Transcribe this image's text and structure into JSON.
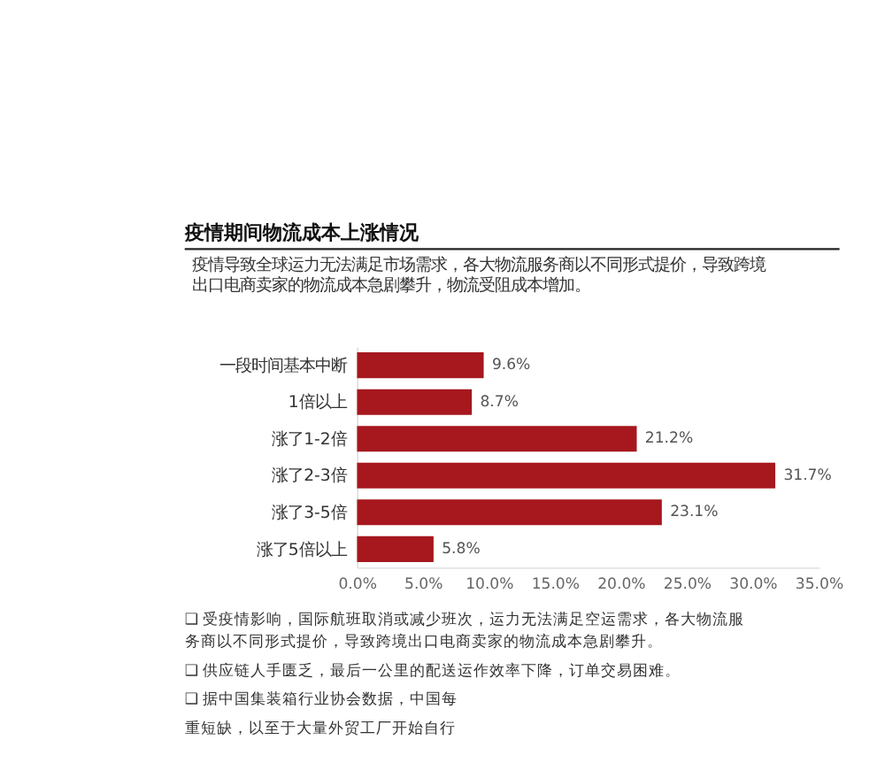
{
  "chart_data": {
    "type": "bar",
    "orientation": "horizontal",
    "title": "疫情期间物流成本上涨情况",
    "subtitle": "疫情导致全球运力无法满足市场需求，各大物流服务商以不同形式提价，导致跨境出口电商卖家的物流成本急剧攀升，物流受阻成本增加。",
    "categories": [
      "一段时间基本中断",
      "1倍以上",
      "涨了1-2倍",
      "涨了2-3倍",
      "涨了3-5倍",
      "涨了5倍以上"
    ],
    "values": [
      9.6,
      8.7,
      21.2,
      31.7,
      23.1,
      5.8
    ],
    "value_labels": [
      "9.6%",
      "8.7%",
      "21.2%",
      "31.7%",
      "23.1%",
      "5.8%"
    ],
    "color": "#a6171e",
    "xlim": [
      0,
      35
    ],
    "xticks": [
      {
        "value": 0,
        "label": "0.0%"
      },
      {
        "value": 5,
        "label": "5.0%"
      },
      {
        "value": 10,
        "label": "10.0%"
      },
      {
        "value": 15,
        "label": "15.0%"
      },
      {
        "value": 20,
        "label": "20.0%"
      },
      {
        "value": 25,
        "label": "25.0%"
      },
      {
        "value": 30,
        "label": "30.0%"
      },
      {
        "value": 35,
        "label": "35.0%"
      }
    ],
    "grid": false,
    "annotations": [
      "❑ 受疫情影响，国际航班取消或减少班次，运力无法满足空运需求，各大物流服务商以不同形式提价，导致跨境出口电商卖家的物流成本急剧攀升。",
      "❑ 供应链人手匮乏，最后一公里的配送运作效率下降，订单交易困难。",
      "❑ 据中国集装箱行业协会数据，中国每",
      "重短缺，以至于大量外贸工厂开始自行"
    ]
  }
}
